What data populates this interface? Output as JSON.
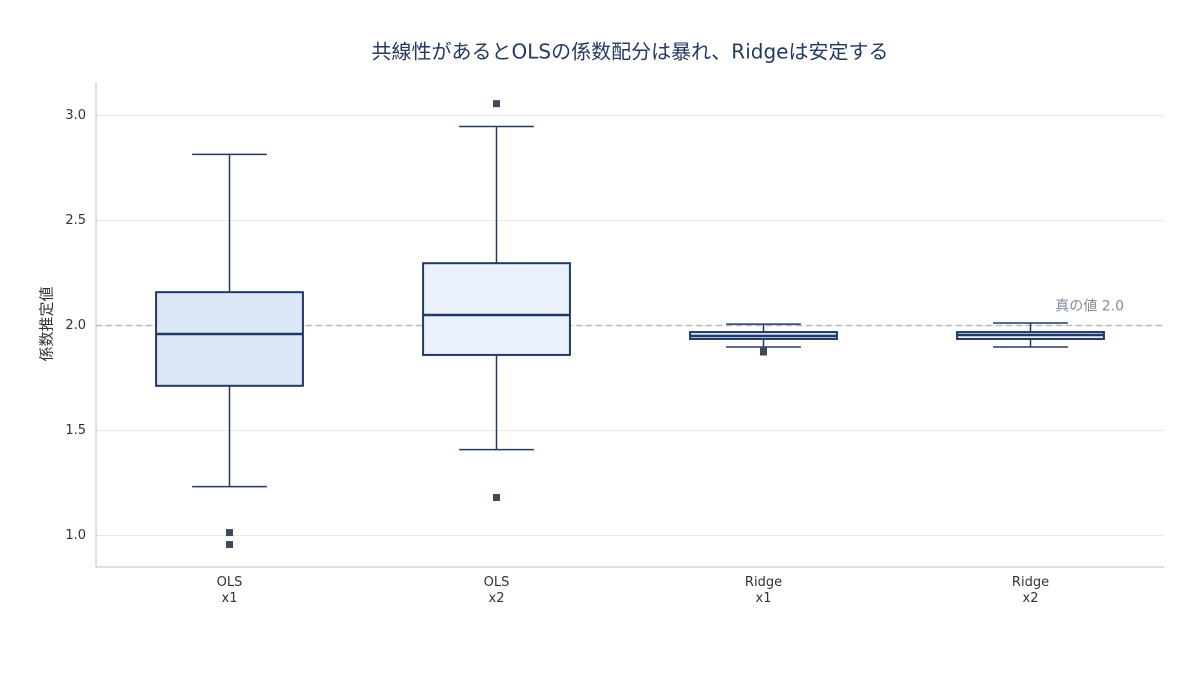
{
  "chart_data": {
    "type": "box",
    "title": "共線性があるとOLSの係数配分は暴れ、Ridgeは安定する",
    "y_label": "係数推定値",
    "categories": [
      "OLS\nx1",
      "OLS\nx2",
      "Ridge\nx1",
      "Ridge\nx2"
    ],
    "boxes": [
      {
        "whisker_low": 1.233,
        "q1": 1.713,
        "median": 1.96,
        "q3": 2.159,
        "whisker_high": 2.815,
        "outliers": [
          1.014,
          0.957
        ],
        "fill": "#dce8f5"
      },
      {
        "whisker_low": 1.409,
        "q1": 1.86,
        "median": 2.05,
        "q3": 2.297,
        "whisker_high": 2.948,
        "outliers": [
          3.057,
          1.181
        ],
        "fill": "#eaf1fa"
      },
      {
        "whisker_low": 1.898,
        "q1": 1.936,
        "median": 1.95,
        "q3": 1.969,
        "whisker_high": 2.007,
        "outliers": [
          1.884,
          1.874
        ],
        "fill": "#dce8f5"
      },
      {
        "whisker_low": 1.898,
        "q1": 1.936,
        "median": 1.955,
        "q3": 1.969,
        "whisker_high": 2.012,
        "outliers": [],
        "fill": "#eaf1fa"
      }
    ],
    "stroke": "#233a66",
    "outlier_color": "#3d4a5c",
    "ylim": [
      0.85,
      3.16
    ],
    "yticks": [
      {
        "value": 1.0,
        "label": "1.0"
      },
      1.5,
      {
        "value": 2.0,
        "label": "2.0"
      },
      2.5,
      {
        "value": 3.0,
        "label": "3.0"
      }
    ],
    "grid": true,
    "reference_line": {
      "value": 2.0,
      "label": "真の値 2.0",
      "color": "#b0bccb"
    }
  }
}
